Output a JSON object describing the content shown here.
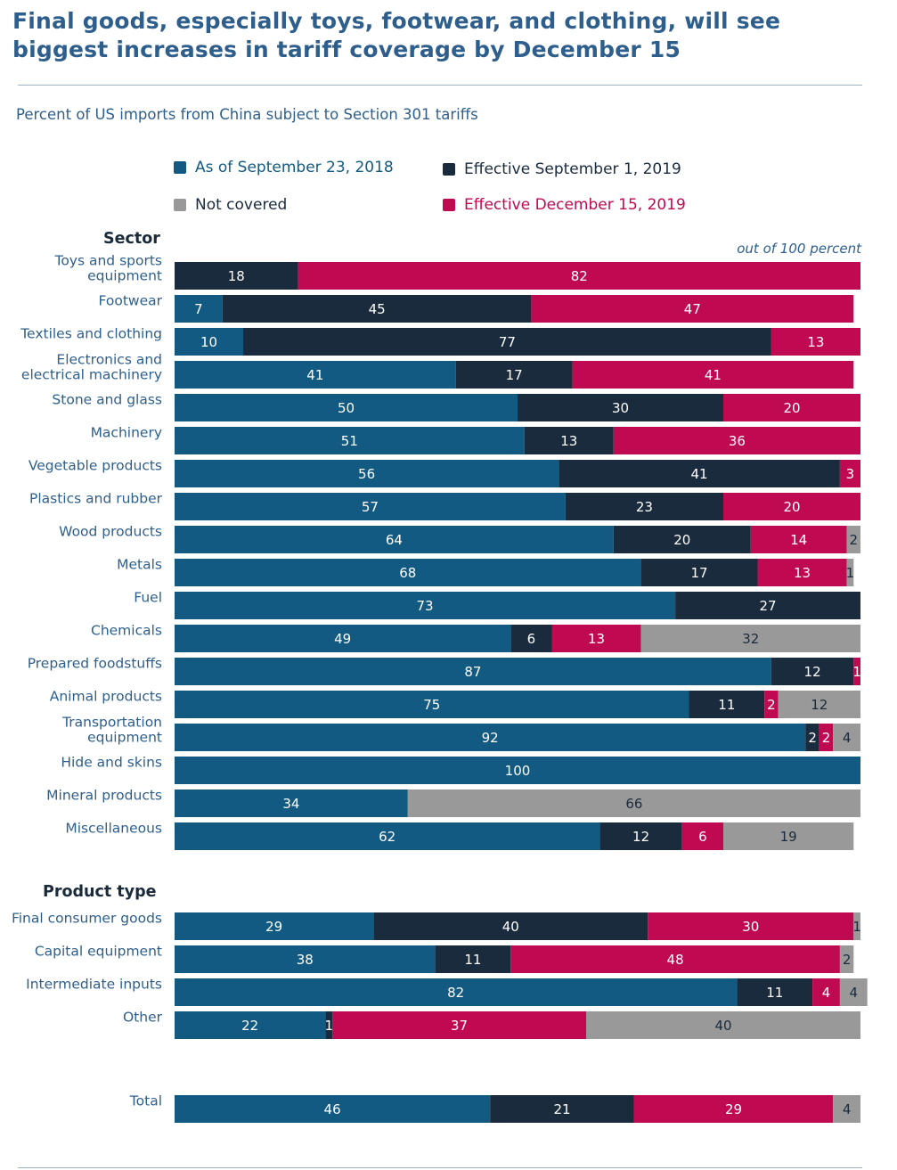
{
  "title": "Final goods, especially toys, footwear, and clothing, will see biggest increases in tariff coverage by December 15",
  "subtitle": "Percent of US imports from China subject to Section 301 tariffs",
  "scale_note": "out of 100 percent",
  "sections": {
    "sector": "Sector",
    "product_type": "Product type"
  },
  "legend": [
    {
      "name": "As of September 23, 2018",
      "color": "#125a82"
    },
    {
      "name": "Effective September 1, 2019",
      "color": "#1a2b3d"
    },
    {
      "name": "Not covered",
      "color": "#999999"
    },
    {
      "name": "Effective December 15, 2019",
      "color": "#bf0a52"
    }
  ],
  "chart_data": {
    "type": "bar",
    "orientation": "horizontal",
    "stacked": true,
    "xlim": [
      0,
      100
    ],
    "stack_order": [
      "As of September 23, 2018",
      "Effective September 1, 2019",
      "Effective December 15, 2019",
      "Not covered"
    ],
    "groups": [
      {
        "name": "Sector",
        "rows": [
          {
            "label": "Toys and sports equipment",
            "values": [
              0,
              18,
              82,
              0
            ]
          },
          {
            "label": "Footwear",
            "values": [
              7,
              45,
              47,
              0
            ]
          },
          {
            "label": "Textiles and clothing",
            "values": [
              10,
              77,
              13,
              0
            ]
          },
          {
            "label": "Electronics and electrical machinery",
            "values": [
              41,
              17,
              41,
              0
            ]
          },
          {
            "label": "Stone and glass",
            "values": [
              50,
              30,
              20,
              0
            ]
          },
          {
            "label": "Machinery",
            "values": [
              51,
              13,
              36,
              0
            ]
          },
          {
            "label": "Vegetable products",
            "values": [
              56,
              41,
              3,
              0
            ]
          },
          {
            "label": "Plastics and rubber",
            "values": [
              57,
              23,
              20,
              0
            ]
          },
          {
            "label": "Wood products",
            "values": [
              64,
              20,
              14,
              2
            ]
          },
          {
            "label": "Metals",
            "values": [
              68,
              17,
              13,
              1
            ]
          },
          {
            "label": "Fuel",
            "values": [
              73,
              27,
              0,
              0
            ]
          },
          {
            "label": "Chemicals",
            "values": [
              49,
              6,
              13,
              32
            ]
          },
          {
            "label": "Prepared foodstuffs",
            "values": [
              87,
              12,
              1,
              0
            ]
          },
          {
            "label": "Animal products",
            "values": [
              75,
              11,
              2,
              12
            ]
          },
          {
            "label": "Transportation equipment",
            "values": [
              92,
              2,
              2,
              4
            ]
          },
          {
            "label": "Hide and skins",
            "values": [
              100,
              0,
              0,
              0
            ]
          },
          {
            "label": "Mineral products",
            "values": [
              34,
              0,
              0,
              66
            ]
          },
          {
            "label": "Miscellaneous",
            "values": [
              62,
              12,
              6,
              19
            ]
          }
        ]
      },
      {
        "name": "Product type",
        "rows": [
          {
            "label": "Final consumer goods",
            "values": [
              29,
              40,
              30,
              1
            ]
          },
          {
            "label": "Capital equipment",
            "values": [
              38,
              11,
              48,
              2
            ]
          },
          {
            "label": "Intermediate inputs",
            "values": [
              82,
              11,
              4,
              4
            ]
          },
          {
            "label": "Other",
            "values": [
              22,
              1,
              37,
              40
            ]
          }
        ]
      },
      {
        "name": "",
        "rows": [
          {
            "label": "Total",
            "values": [
              46,
              21,
              29,
              4
            ]
          }
        ]
      }
    ]
  }
}
